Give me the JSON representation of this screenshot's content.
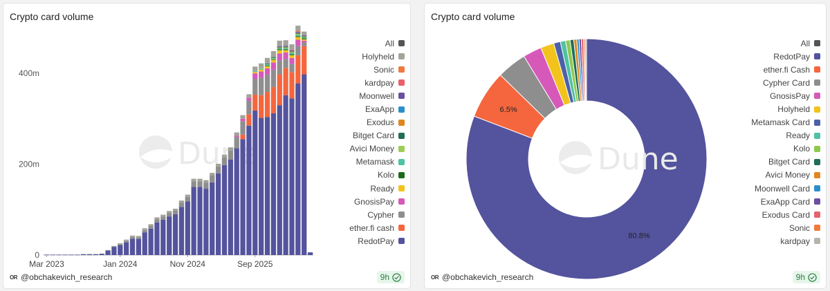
{
  "panels": {
    "left": {
      "title": "Crypto card volume",
      "user": "@obchakevich_research",
      "badge": "9h",
      "logo": "OR",
      "watermark": "Dune"
    },
    "right": {
      "title": "Crypto card volume",
      "user": "@obchakevich_research",
      "badge": "9h",
      "logo": "OR",
      "watermark": "Dune"
    }
  },
  "chart_data": [
    {
      "type": "bar",
      "stacked": true,
      "title": "Crypto card volume",
      "x_tick_labels": [
        "Mar 2023",
        "Jan 2024",
        "Nov 2024",
        "Sep 2025"
      ],
      "y_tick_labels": [
        "0",
        "200m",
        "400m"
      ],
      "y_ticks": [
        0,
        200,
        400
      ],
      "y_unit": "m",
      "ylim": [
        0,
        490
      ],
      "legend_position": "right",
      "legend": [
        {
          "name": "All",
          "color": "#555555"
        },
        {
          "name": "Holyheld",
          "color": "#a3a39b"
        },
        {
          "name": "Sonic",
          "color": "#ef7a3e"
        },
        {
          "name": "kardpay",
          "color": "#e8616b"
        },
        {
          "name": "Moonwell",
          "color": "#6c4fa0"
        },
        {
          "name": "ExaApp",
          "color": "#2c8fcc"
        },
        {
          "name": "Exodus",
          "color": "#e0851f"
        },
        {
          "name": "Bitget Card",
          "color": "#1f6e58"
        },
        {
          "name": "Avici Money",
          "color": "#9fcc55"
        },
        {
          "name": "Metamask",
          "color": "#4fc2a4"
        },
        {
          "name": "Kolo",
          "color": "#1d6a1d"
        },
        {
          "name": "Ready",
          "color": "#f2c31d"
        },
        {
          "name": "GnosisPay",
          "color": "#d659ba"
        },
        {
          "name": "Cypher",
          "color": "#8e8e8e"
        },
        {
          "name": "ether.fi cash",
          "color": "#f5663e"
        },
        {
          "name": "RedotPay",
          "color": "#54539d"
        }
      ],
      "series_order": [
        "RedotPay",
        "ether.fi cash",
        "Cypher",
        "GnosisPay",
        "Ready",
        "Kolo",
        "Metamask",
        "Avici Money",
        "Bitget Card",
        "Exodus",
        "ExaApp",
        "Moonwell",
        "kardpay",
        "Sonic",
        "Holyheld"
      ],
      "bars": [
        {
          "tick": "Mar 2023",
          "values": [
            1
          ]
        },
        {
          "values": [
            1
          ]
        },
        {
          "values": [
            1
          ]
        },
        {
          "values": [
            1
          ]
        },
        {
          "values": [
            1
          ]
        },
        {
          "values": [
            1
          ]
        },
        {
          "values": [
            2
          ]
        },
        {
          "values": [
            2
          ]
        },
        {
          "values": [
            2
          ]
        },
        {
          "values": [
            3
          ]
        },
        {
          "values": [
            10,
            0,
            0,
            0,
            0,
            0,
            0,
            0,
            0,
            0,
            0,
            0,
            0,
            0,
            1
          ]
        },
        {
          "values": [
            18,
            0,
            1,
            0,
            0,
            0,
            0,
            0,
            0,
            0,
            0,
            0,
            0,
            0,
            1
          ]
        },
        {
          "tick": "Jan 2024",
          "values": [
            22,
            0,
            2,
            0,
            0,
            0,
            0,
            0,
            0,
            0,
            0,
            0,
            0,
            0,
            2
          ]
        },
        {
          "values": [
            28,
            0,
            3,
            0,
            0,
            0,
            0,
            0,
            0,
            0,
            0,
            0,
            0,
            0,
            3
          ]
        },
        {
          "values": [
            36,
            0,
            4,
            0,
            0,
            0,
            0,
            0,
            0,
            0,
            0,
            0,
            0,
            0,
            3
          ]
        },
        {
          "values": [
            35,
            0,
            4,
            0,
            0,
            0,
            0,
            0,
            0,
            0,
            0,
            0,
            0,
            0,
            3
          ]
        },
        {
          "values": [
            50,
            0,
            5,
            0,
            0,
            0,
            0,
            0,
            0,
            0,
            0,
            0,
            0,
            0,
            4
          ]
        },
        {
          "values": [
            58,
            0,
            6,
            0,
            0,
            0,
            0,
            0,
            0,
            0,
            0,
            0,
            0,
            0,
            4
          ]
        },
        {
          "values": [
            72,
            0,
            7,
            0,
            0,
            0,
            0,
            0,
            0,
            0,
            0,
            0,
            0,
            0,
            4
          ]
        },
        {
          "values": [
            78,
            0,
            7,
            0,
            0,
            0,
            0,
            0,
            0,
            0,
            0,
            0,
            0,
            0,
            4
          ]
        },
        {
          "values": [
            85,
            0,
            8,
            0,
            0,
            0,
            0,
            0,
            0,
            0,
            0,
            0,
            0,
            0,
            4
          ]
        },
        {
          "values": [
            90,
            0,
            8,
            0,
            0,
            0,
            0,
            0,
            0,
            0,
            0,
            0,
            0,
            0,
            4
          ]
        },
        {
          "values": [
            106,
            0,
            9,
            0,
            0,
            0,
            0,
            0,
            0,
            0,
            0,
            0,
            0,
            0,
            5
          ]
        },
        {
          "tick": "Nov 2024",
          "values": [
            118,
            0,
            10,
            0,
            0,
            0,
            0,
            0,
            0,
            0,
            0,
            0,
            0,
            0,
            5
          ]
        },
        {
          "values": [
            150,
            0,
            12,
            0,
            0,
            0,
            0,
            0,
            0,
            0,
            0,
            0,
            0,
            0,
            6
          ]
        },
        {
          "values": [
            150,
            0,
            12,
            0,
            0,
            0,
            0,
            0,
            0,
            0,
            0,
            0,
            0,
            0,
            6
          ]
        },
        {
          "values": [
            146,
            0,
            13,
            0,
            0,
            0,
            0,
            0,
            0,
            0,
            0,
            0,
            0,
            0,
            6
          ]
        },
        {
          "values": [
            160,
            0,
            15,
            0,
            0,
            0,
            0,
            0,
            0,
            0,
            0,
            0,
            0,
            0,
            6
          ]
        },
        {
          "values": [
            180,
            0,
            15,
            0,
            0,
            0,
            0,
            0,
            0,
            0,
            0,
            0,
            0,
            0,
            6
          ]
        },
        {
          "values": [
            198,
            0,
            17,
            0,
            0,
            0,
            0,
            0,
            0,
            0,
            0,
            0,
            0,
            0,
            6
          ]
        },
        {
          "values": [
            210,
            0,
            20,
            0,
            0,
            0,
            0,
            0,
            0,
            0,
            0,
            0,
            0,
            0,
            7
          ]
        },
        {
          "values": [
            235,
            0,
            25,
            3,
            0,
            0,
            0,
            0,
            0,
            0,
            0,
            0,
            0,
            0,
            7
          ]
        },
        {
          "values": [
            255,
            10,
            30,
            5,
            0,
            0,
            0,
            0,
            0,
            0,
            0,
            0,
            0,
            0,
            8
          ]
        },
        {
          "values": [
            285,
            25,
            30,
            6,
            0,
            0,
            0,
            0,
            0,
            0,
            0,
            0,
            0,
            0,
            8
          ]
        },
        {
          "tick": "Sep 2025",
          "values": [
            318,
            35,
            35,
            12,
            3,
            0,
            2,
            0,
            0,
            0,
            0,
            0,
            0,
            0,
            10
          ]
        },
        {
          "values": [
            302,
            50,
            38,
            14,
            4,
            0,
            2,
            1,
            0,
            0,
            0,
            0,
            0,
            0,
            11
          ]
        },
        {
          "values": [
            304,
            55,
            38,
            14,
            5,
            1,
            2,
            1,
            1,
            0,
            1,
            0,
            0,
            0,
            12
          ]
        },
        {
          "values": [
            312,
            58,
            38,
            16,
            6,
            1,
            2,
            1,
            1,
            1,
            1,
            0,
            0,
            0,
            12
          ]
        },
        {
          "values": [
            330,
            68,
            30,
            16,
            7,
            2,
            2,
            1,
            1,
            1,
            1,
            1,
            0,
            0,
            12
          ]
        },
        {
          "values": [
            352,
            60,
            20,
            14,
            5,
            2,
            2,
            2,
            1,
            1,
            1,
            1,
            0,
            0,
            12
          ]
        },
        {
          "values": [
            345,
            58,
            18,
            13,
            6,
            2,
            3,
            2,
            1,
            1,
            1,
            1,
            1,
            0,
            12
          ]
        },
        {
          "values": [
            378,
            62,
            20,
            14,
            6,
            2,
            3,
            2,
            1,
            1,
            1,
            1,
            1,
            1,
            12
          ]
        },
        {
          "values": [
            398,
            62,
            8,
            4,
            3,
            2,
            2,
            1,
            1,
            1,
            1,
            1,
            0,
            0,
            8
          ]
        },
        {
          "values": [
            6
          ]
        }
      ]
    },
    {
      "type": "pie",
      "donut": true,
      "title": "Crypto card volume",
      "legend_position": "right",
      "legend": [
        {
          "name": "All",
          "color": "#555555"
        },
        {
          "name": "RedotPay",
          "color": "#54539d"
        },
        {
          "name": "ether.fi Cash",
          "color": "#f5663e"
        },
        {
          "name": "Cypher Card",
          "color": "#8e8e8e"
        },
        {
          "name": "GnosisPay",
          "color": "#d659ba"
        },
        {
          "name": "Holyheld",
          "color": "#f2c31d"
        },
        {
          "name": "Metamask Card",
          "color": "#4b61a8"
        },
        {
          "name": "Ready",
          "color": "#4fc2a4"
        },
        {
          "name": "Kolo",
          "color": "#8dc94f"
        },
        {
          "name": "Bitget Card",
          "color": "#1f6e58"
        },
        {
          "name": "Avici Money",
          "color": "#e0851f"
        },
        {
          "name": "Moonwell Card",
          "color": "#2c8fcc"
        },
        {
          "name": "ExaApp Card",
          "color": "#6c4fa0"
        },
        {
          "name": "Exodus Card",
          "color": "#e8616b"
        },
        {
          "name": "Sonic",
          "color": "#ef7a3e"
        },
        {
          "name": "kardpay",
          "color": "#b9b4ab"
        }
      ],
      "slices": [
        {
          "name": "RedotPay",
          "value": 80.8,
          "label": "80.8%"
        },
        {
          "name": "ether.fi Cash",
          "value": 6.5,
          "label": "6.5%"
        },
        {
          "name": "Cypher Card",
          "value": 4.0
        },
        {
          "name": "GnosisPay",
          "value": 2.5
        },
        {
          "name": "Holyheld",
          "value": 1.8
        },
        {
          "name": "Metamask Card",
          "value": 0.9
        },
        {
          "name": "Ready",
          "value": 0.7
        },
        {
          "name": "Kolo",
          "value": 0.6
        },
        {
          "name": "Bitget Card",
          "value": 0.5
        },
        {
          "name": "Avici Money",
          "value": 0.4
        },
        {
          "name": "Moonwell Card",
          "value": 0.3
        },
        {
          "name": "ExaApp Card",
          "value": 0.3
        },
        {
          "name": "Exodus Card",
          "value": 0.3
        },
        {
          "name": "Sonic",
          "value": 0.2
        },
        {
          "name": "kardpay",
          "value": 0.2
        }
      ]
    }
  ]
}
